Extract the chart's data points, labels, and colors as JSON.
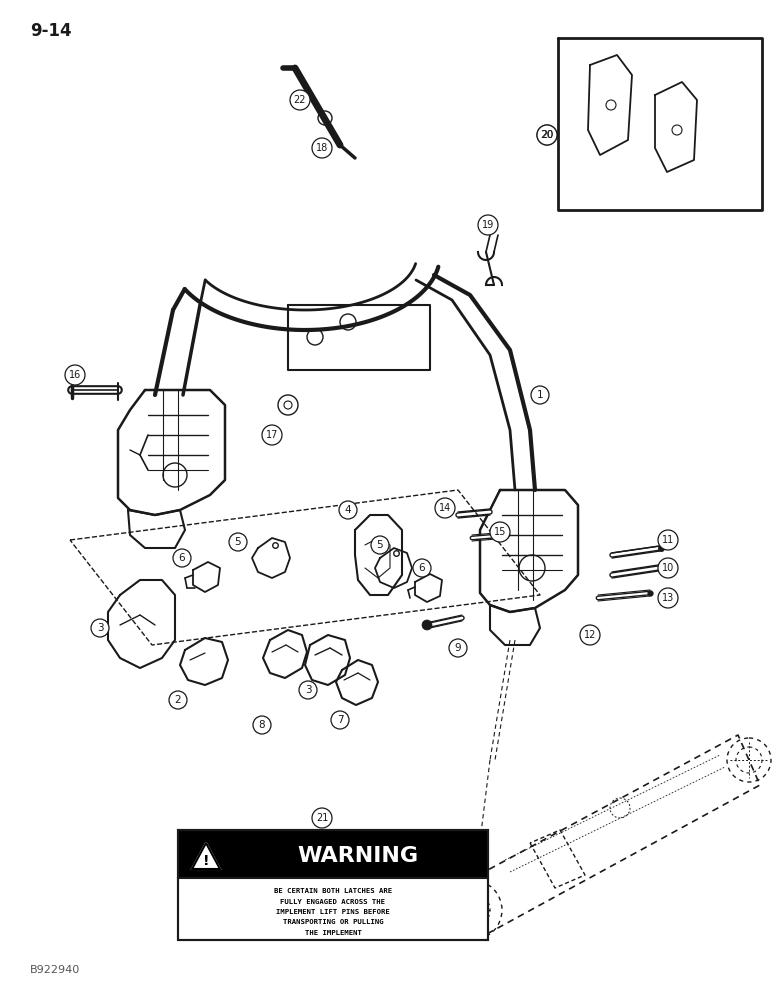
{
  "page_number": "9-14",
  "figure_number": "B922940",
  "background_color": "#ffffff",
  "line_color": "#1a1a1a",
  "warning_header": "WARNING",
  "warning_text": "BE CERTAIN BOTH LATCHES ARE\nFULLY ENGAGED ACROSS THE\nIMPLEMENT LIFT PINS BEFORE\nTRANSPORTING OR PULLING\nTHE IMPLEMENT"
}
